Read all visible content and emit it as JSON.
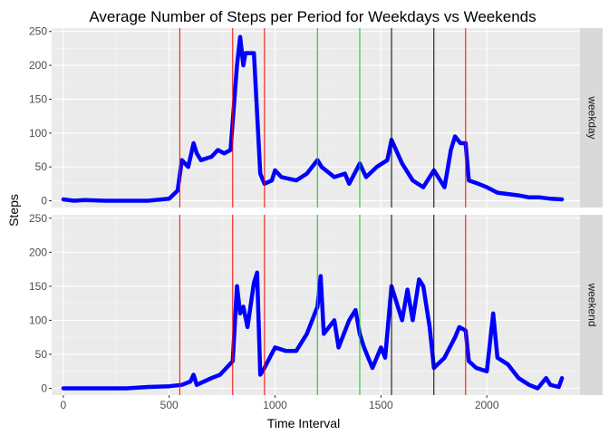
{
  "chart_data": {
    "type": "line",
    "title": "Average Number of Steps per Period for Weekdays vs Weekends",
    "xlabel": "Time Interval",
    "ylabel": "Steps",
    "xlim": [
      -55,
      2440
    ],
    "ylim": [
      -10,
      255
    ],
    "x_ticks": [
      0,
      500,
      1000,
      1500,
      2000
    ],
    "y_ticks": [
      0,
      50,
      100,
      150,
      200,
      250
    ],
    "grid": true,
    "line_color": "#0000ff",
    "background_color": "#ebebeb",
    "strip_color": "#d9d9d9",
    "vlines": [
      {
        "x": 550,
        "color": "#ff0000"
      },
      {
        "x": 800,
        "color": "#ff0000"
      },
      {
        "x": 950,
        "color": "#ff0000"
      },
      {
        "x": 1200,
        "color": "#00cc00"
      },
      {
        "x": 1400,
        "color": "#00cc00"
      },
      {
        "x": 1550,
        "color": "#000000"
      },
      {
        "x": 1750,
        "color": "#000000"
      },
      {
        "x": 1900,
        "color": "#ff0000"
      }
    ],
    "panels": [
      {
        "strip": "weekday",
        "points": [
          [
            0,
            2
          ],
          [
            50,
            0
          ],
          [
            100,
            1
          ],
          [
            200,
            0
          ],
          [
            300,
            0
          ],
          [
            400,
            0
          ],
          [
            500,
            3
          ],
          [
            540,
            15
          ],
          [
            560,
            60
          ],
          [
            590,
            50
          ],
          [
            615,
            85
          ],
          [
            630,
            70
          ],
          [
            650,
            60
          ],
          [
            700,
            65
          ],
          [
            730,
            75
          ],
          [
            760,
            70
          ],
          [
            790,
            75
          ],
          [
            820,
            200
          ],
          [
            835,
            242
          ],
          [
            850,
            200
          ],
          [
            860,
            218
          ],
          [
            880,
            218
          ],
          [
            900,
            218
          ],
          [
            930,
            40
          ],
          [
            950,
            25
          ],
          [
            985,
            30
          ],
          [
            1000,
            45
          ],
          [
            1030,
            35
          ],
          [
            1100,
            30
          ],
          [
            1150,
            40
          ],
          [
            1200,
            60
          ],
          [
            1220,
            50
          ],
          [
            1280,
            35
          ],
          [
            1330,
            40
          ],
          [
            1350,
            25
          ],
          [
            1400,
            55
          ],
          [
            1430,
            35
          ],
          [
            1480,
            50
          ],
          [
            1530,
            60
          ],
          [
            1550,
            90
          ],
          [
            1600,
            55
          ],
          [
            1650,
            30
          ],
          [
            1700,
            20
          ],
          [
            1750,
            45
          ],
          [
            1800,
            20
          ],
          [
            1830,
            75
          ],
          [
            1850,
            95
          ],
          [
            1875,
            85
          ],
          [
            1900,
            85
          ],
          [
            1915,
            30
          ],
          [
            1960,
            25
          ],
          [
            2000,
            20
          ],
          [
            2050,
            12
          ],
          [
            2100,
            10
          ],
          [
            2150,
            8
          ],
          [
            2200,
            5
          ],
          [
            2250,
            5
          ],
          [
            2300,
            3
          ],
          [
            2355,
            2
          ]
        ]
      },
      {
        "strip": "weekend",
        "points": [
          [
            0,
            0
          ],
          [
            100,
            0
          ],
          [
            200,
            0
          ],
          [
            300,
            0
          ],
          [
            400,
            2
          ],
          [
            500,
            3
          ],
          [
            560,
            5
          ],
          [
            600,
            10
          ],
          [
            615,
            20
          ],
          [
            630,
            5
          ],
          [
            700,
            15
          ],
          [
            740,
            20
          ],
          [
            770,
            30
          ],
          [
            800,
            40
          ],
          [
            820,
            150
          ],
          [
            835,
            110
          ],
          [
            850,
            120
          ],
          [
            870,
            90
          ],
          [
            900,
            155
          ],
          [
            915,
            170
          ],
          [
            930,
            20
          ],
          [
            950,
            30
          ],
          [
            1000,
            60
          ],
          [
            1050,
            55
          ],
          [
            1100,
            55
          ],
          [
            1150,
            80
          ],
          [
            1200,
            120
          ],
          [
            1215,
            165
          ],
          [
            1230,
            80
          ],
          [
            1280,
            100
          ],
          [
            1300,
            60
          ],
          [
            1350,
            100
          ],
          [
            1380,
            115
          ],
          [
            1400,
            80
          ],
          [
            1420,
            60
          ],
          [
            1460,
            30
          ],
          [
            1500,
            60
          ],
          [
            1520,
            45
          ],
          [
            1550,
            150
          ],
          [
            1580,
            120
          ],
          [
            1600,
            100
          ],
          [
            1625,
            145
          ],
          [
            1650,
            100
          ],
          [
            1680,
            160
          ],
          [
            1700,
            150
          ],
          [
            1730,
            90
          ],
          [
            1750,
            30
          ],
          [
            1800,
            45
          ],
          [
            1850,
            75
          ],
          [
            1870,
            90
          ],
          [
            1900,
            85
          ],
          [
            1915,
            40
          ],
          [
            1950,
            30
          ],
          [
            2000,
            25
          ],
          [
            2030,
            110
          ],
          [
            2050,
            45
          ],
          [
            2100,
            35
          ],
          [
            2150,
            15
          ],
          [
            2200,
            5
          ],
          [
            2240,
            0
          ],
          [
            2280,
            15
          ],
          [
            2300,
            5
          ],
          [
            2340,
            2
          ],
          [
            2355,
            15
          ]
        ]
      }
    ]
  }
}
